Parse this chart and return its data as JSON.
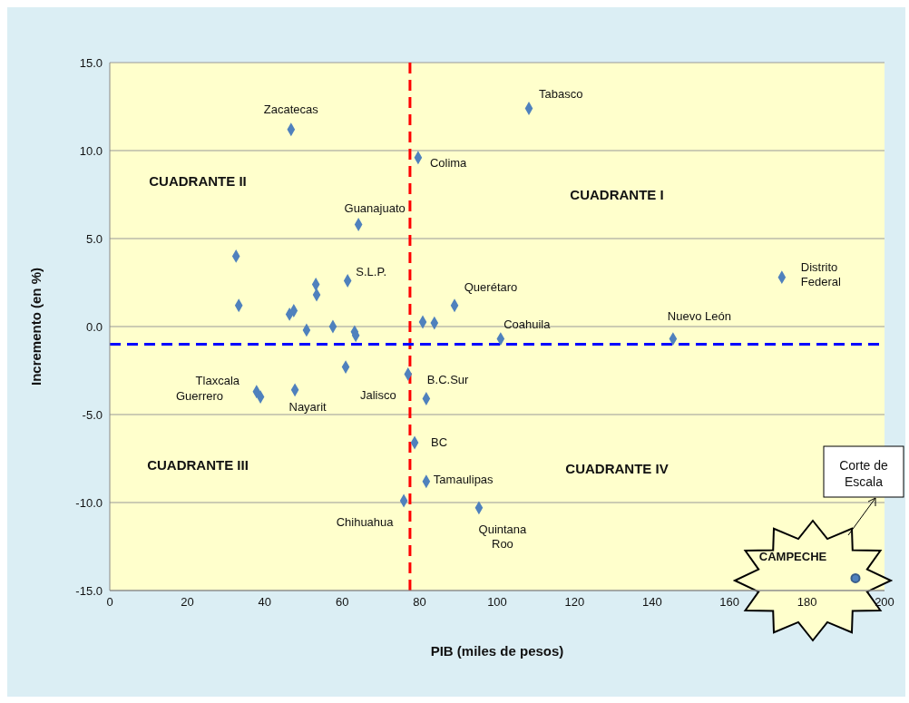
{
  "chart_data": {
    "type": "scatter",
    "xlabel": "PIB (miles de pesos)",
    "ylabel": "Incremento  (en %)",
    "xlim": [
      0,
      200
    ],
    "xticks": [
      0,
      20,
      40,
      60,
      80,
      100,
      120,
      140,
      160,
      180,
      200
    ],
    "ylim": [
      -15,
      15
    ],
    "yticks": [
      {
        "value": -15,
        "label": "-15.0"
      },
      {
        "value": -10,
        "label": "-10.0"
      },
      {
        "value": -5,
        "label": "-5.0"
      },
      {
        "value": 0,
        "label": "0.0"
      },
      {
        "value": 5,
        "label": "5.0"
      },
      {
        "value": 10,
        "label": "10.0"
      },
      {
        "value": 15,
        "label": "15.0"
      }
    ],
    "grid": "y",
    "marker": "diamond",
    "series": [
      {
        "color": "#4f81bd",
        "x": [
          46.8,
          108.2,
          79.6,
          64.2,
          32.6,
          33.3,
          61.4,
          53.2,
          53.4,
          46.4,
          47.5,
          50.8,
          57.6,
          63.2,
          63.5,
          80.8,
          83.8,
          89,
          100.9,
          145.4,
          173.5,
          60.9,
          77,
          81.7,
          37.9,
          38.9,
          47.8,
          78.7,
          81.7,
          75.9,
          95.3
        ],
        "values": [
          11.2,
          12.4,
          9.6,
          5.8,
          4,
          1.2,
          2.6,
          2.4,
          1.8,
          0.7,
          0.9,
          -0.2,
          0,
          -0.3,
          -0.5,
          0.26,
          0.2,
          1.2,
          -0.7,
          -0.7,
          2.8,
          -2.3,
          -2.7,
          -4.1,
          -3.7,
          -4,
          -3.6,
          -6.6,
          -8.8,
          -9.9,
          -10.3
        ]
      },
      {
        "color": "#4f81bd",
        "marker": "circle",
        "x": [
          192.5
        ],
        "values": [
          -14.3
        ]
      }
    ],
    "ref_lines": [
      {
        "axis": "x",
        "value": 77.5,
        "color": "#ff0000",
        "line_style": "dashed"
      },
      {
        "axis": "y",
        "value": -1,
        "color": "#0000ff",
        "line_style": "dashed"
      }
    ],
    "annotations": [
      "CUADRANTE I",
      "CUADRANTE II",
      "CUADRANTE III",
      "CUADRANTE IV",
      {
        "text": "Zacatecas",
        "x": 46.8,
        "y": 11.2
      },
      {
        "text": "Tabasco",
        "x": 108.2,
        "y": 12.4
      },
      {
        "text": "Colima",
        "x": 79.6,
        "y": 9.6
      },
      {
        "text": "Guanajuato",
        "x": 64.2,
        "y": 5.8
      },
      {
        "text": "S.L.P.",
        "x": 61.4,
        "y": 2.6
      },
      {
        "text": "Querétaro",
        "x": 89,
        "y": 1.2
      },
      {
        "text": "Coahuila",
        "x": 100.9,
        "y": -0.7
      },
      {
        "text": "Nuevo León",
        "x": 145.4,
        "y": -0.7
      },
      {
        "text": "Distrito\nFederal",
        "x": 173.5,
        "y": 2.8
      },
      {
        "text": "Jalisco",
        "x": 77,
        "y": -2.7
      },
      {
        "text": "B.C.Sur",
        "x": 81.7,
        "y": -4.1
      },
      {
        "text": "Tlaxcala",
        "x": 37.9,
        "y": -3.7
      },
      "Guerrero",
      {
        "text": "Nayarit",
        "x": 47.8,
        "y": -3.6
      },
      {
        "text": "BC",
        "x": 78.7,
        "y": -6.6
      },
      {
        "text": "Tamaulipas",
        "x": 81.7,
        "y": -8.8
      },
      {
        "text": "Chihuahua",
        "x": 75.9,
        "y": -9.9
      },
      {
        "text": "Quintana\nRoo",
        "x": 95.3,
        "y": -10.3
      },
      "CAMPECHE",
      "Corte de\nEscala"
    ]
  }
}
